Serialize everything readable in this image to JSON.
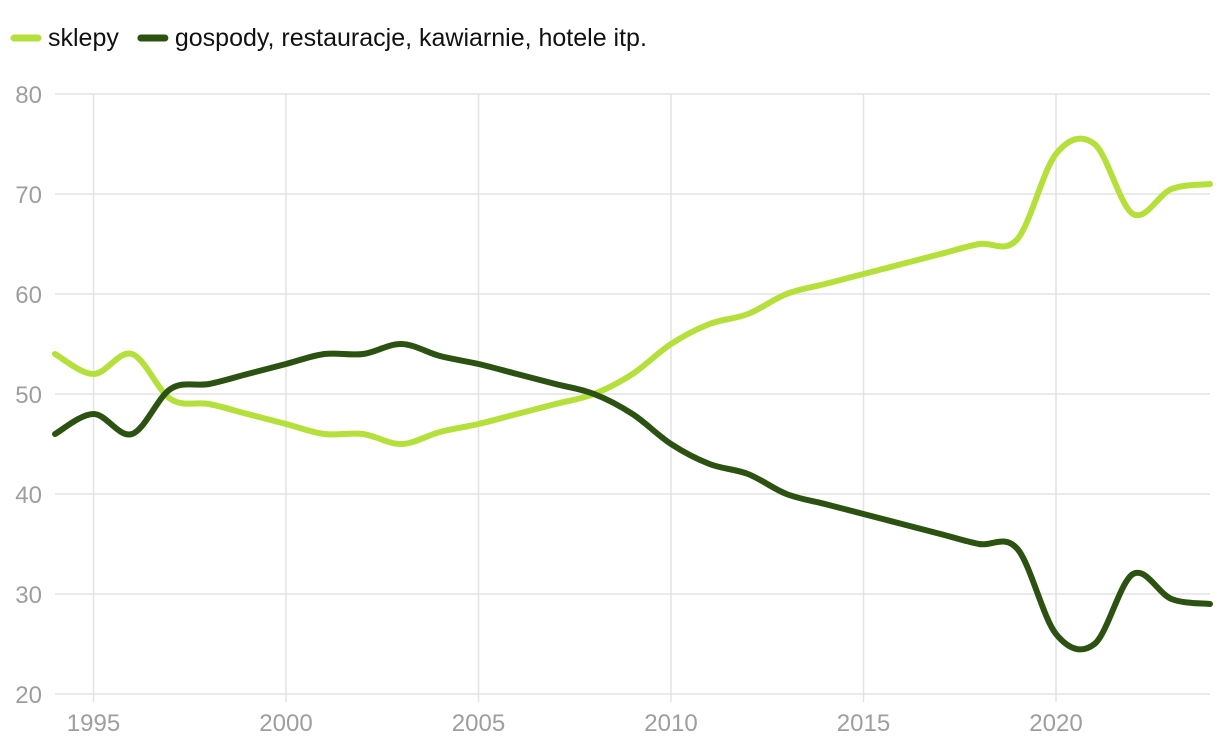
{
  "chart_data": {
    "type": "line",
    "title": "",
    "xlabel": "",
    "ylabel": "",
    "xlim": [
      1994,
      2024
    ],
    "ylim": [
      20,
      80
    ],
    "x_ticks": [
      1995,
      2000,
      2005,
      2010,
      2015,
      2020
    ],
    "y_ticks": [
      20,
      30,
      40,
      50,
      60,
      70,
      80
    ],
    "x_tick_labels": [
      "1995",
      "2000",
      "2005",
      "2010",
      "2015",
      "2020"
    ],
    "y_tick_labels": [
      "20",
      "30",
      "40",
      "50",
      "60",
      "70",
      "80"
    ],
    "grid": true,
    "legend_position": "top-left",
    "x": [
      1994,
      1995,
      1996,
      1997,
      1998,
      1999,
      2000,
      2001,
      2002,
      2003,
      2004,
      2005,
      2006,
      2007,
      2008,
      2009,
      2010,
      2011,
      2012,
      2013,
      2014,
      2015,
      2016,
      2017,
      2018,
      2019,
      2020,
      2021,
      2022,
      2023,
      2024
    ],
    "series": [
      {
        "name": "sklepy",
        "color": "#b5e03b",
        "values": [
          54,
          52,
          54,
          49.5,
          49,
          48,
          47,
          46,
          46,
          45,
          46.2,
          47,
          48,
          49,
          50,
          52,
          55,
          57,
          58,
          60,
          61,
          62,
          63,
          64,
          65,
          65.5,
          74,
          75,
          68,
          70.5,
          71
        ]
      },
      {
        "name": "gospody, restauracje, kawiarnie, hotele itp.",
        "color": "#2c5212",
        "values": [
          46,
          48,
          46,
          50.5,
          51,
          52,
          53,
          54,
          54,
          55,
          53.8,
          53,
          52,
          51,
          50,
          48,
          45,
          43,
          42,
          40,
          39,
          38,
          37,
          36,
          35,
          34.5,
          26,
          25,
          32,
          29.5,
          29
        ]
      }
    ]
  }
}
